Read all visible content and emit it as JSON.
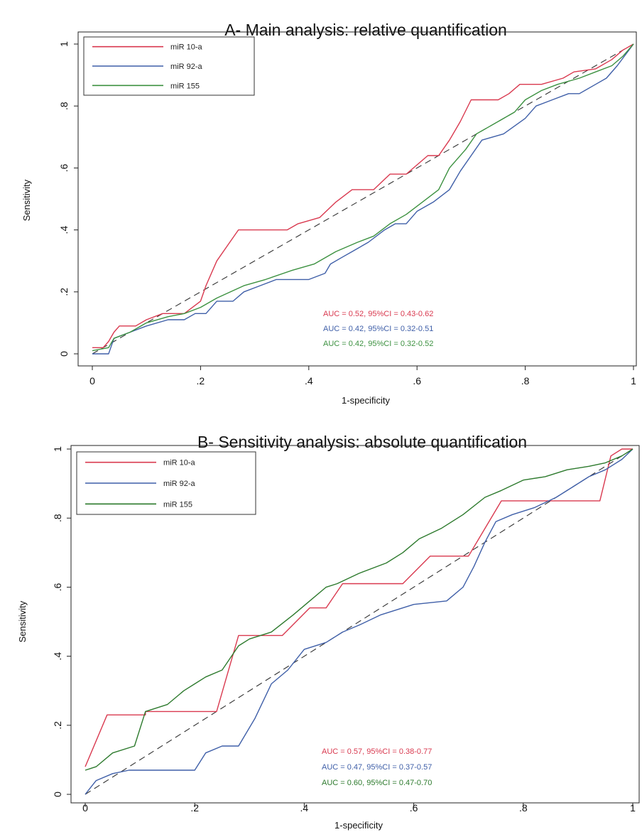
{
  "chart_data": [
    {
      "type": "line",
      "title": "A- Main analysis: relative quantification",
      "xlabel": "1-specificity",
      "ylabel": "Sensitivity",
      "xlim": [
        0,
        1
      ],
      "ylim": [
        0,
        1
      ],
      "xticks": [
        {
          "value": 0,
          "label": "0"
        },
        {
          "value": 0.2,
          "label": ".2"
        },
        {
          "value": 0.4,
          "label": ".4"
        },
        {
          "value": 0.6,
          "label": ".6"
        },
        {
          "value": 0.8,
          "label": ".8"
        },
        {
          "value": 1,
          "label": "1"
        }
      ],
      "yticks": [
        {
          "value": 0,
          "label": "0"
        },
        {
          "value": 0.2,
          "label": ".2"
        },
        {
          "value": 0.4,
          "label": ".4"
        },
        {
          "value": 0.6,
          "label": ".6"
        },
        {
          "value": 0.8,
          "label": ".8"
        },
        {
          "value": 1,
          "label": "1"
        }
      ],
      "grid": false,
      "legend": "top-left",
      "reference_line": "diagonal dashed",
      "series": [
        {
          "name": "miR 10-a",
          "color": "#d9394f",
          "points": [
            [
              0,
              0.02
            ],
            [
              0.02,
              0.02
            ],
            [
              0.03,
              0.04
            ],
            [
              0.04,
              0.07
            ],
            [
              0.05,
              0.09
            ],
            [
              0.08,
              0.09
            ],
            [
              0.1,
              0.11
            ],
            [
              0.13,
              0.13
            ],
            [
              0.17,
              0.13
            ],
            [
              0.2,
              0.17
            ],
            [
              0.21,
              0.22
            ],
            [
              0.23,
              0.3
            ],
            [
              0.25,
              0.35
            ],
            [
              0.27,
              0.4
            ],
            [
              0.31,
              0.4
            ],
            [
              0.36,
              0.4
            ],
            [
              0.38,
              0.42
            ],
            [
              0.42,
              0.44
            ],
            [
              0.45,
              0.49
            ],
            [
              0.48,
              0.53
            ],
            [
              0.52,
              0.53
            ],
            [
              0.55,
              0.58
            ],
            [
              0.58,
              0.58
            ],
            [
              0.62,
              0.64
            ],
            [
              0.64,
              0.64
            ],
            [
              0.66,
              0.69
            ],
            [
              0.68,
              0.75
            ],
            [
              0.7,
              0.82
            ],
            [
              0.75,
              0.82
            ],
            [
              0.77,
              0.84
            ],
            [
              0.79,
              0.87
            ],
            [
              0.83,
              0.87
            ],
            [
              0.87,
              0.89
            ],
            [
              0.89,
              0.91
            ],
            [
              0.93,
              0.92
            ],
            [
              0.96,
              0.95
            ],
            [
              0.98,
              0.98
            ],
            [
              1,
              1
            ]
          ]
        },
        {
          "name": "miR 92-a",
          "color": "#3f5fa8",
          "points": [
            [
              0,
              0
            ],
            [
              0.03,
              0
            ],
            [
              0.04,
              0.05
            ],
            [
              0.07,
              0.07
            ],
            [
              0.1,
              0.09
            ],
            [
              0.14,
              0.11
            ],
            [
              0.17,
              0.11
            ],
            [
              0.19,
              0.13
            ],
            [
              0.21,
              0.13
            ],
            [
              0.23,
              0.17
            ],
            [
              0.26,
              0.17
            ],
            [
              0.28,
              0.2
            ],
            [
              0.31,
              0.22
            ],
            [
              0.34,
              0.24
            ],
            [
              0.4,
              0.24
            ],
            [
              0.43,
              0.26
            ],
            [
              0.44,
              0.29
            ],
            [
              0.46,
              0.31
            ],
            [
              0.48,
              0.33
            ],
            [
              0.51,
              0.36
            ],
            [
              0.54,
              0.4
            ],
            [
              0.56,
              0.42
            ],
            [
              0.58,
              0.42
            ],
            [
              0.6,
              0.46
            ],
            [
              0.63,
              0.49
            ],
            [
              0.66,
              0.53
            ],
            [
              0.68,
              0.59
            ],
            [
              0.7,
              0.64
            ],
            [
              0.72,
              0.69
            ],
            [
              0.76,
              0.71
            ],
            [
              0.8,
              0.76
            ],
            [
              0.82,
              0.8
            ],
            [
              0.85,
              0.82
            ],
            [
              0.88,
              0.84
            ],
            [
              0.9,
              0.84
            ],
            [
              0.93,
              0.87
            ],
            [
              0.95,
              0.89
            ],
            [
              0.97,
              0.93
            ],
            [
              1,
              1
            ]
          ]
        },
        {
          "name": "miR 155",
          "color": "#3c9140",
          "points": [
            [
              0,
              0.01
            ],
            [
              0.03,
              0.02
            ],
            [
              0.04,
              0.05
            ],
            [
              0.07,
              0.07
            ],
            [
              0.1,
              0.1
            ],
            [
              0.14,
              0.12
            ],
            [
              0.17,
              0.13
            ],
            [
              0.2,
              0.15
            ],
            [
              0.23,
              0.18
            ],
            [
              0.28,
              0.22
            ],
            [
              0.32,
              0.24
            ],
            [
              0.37,
              0.27
            ],
            [
              0.41,
              0.29
            ],
            [
              0.45,
              0.33
            ],
            [
              0.49,
              0.36
            ],
            [
              0.52,
              0.38
            ],
            [
              0.55,
              0.42
            ],
            [
              0.58,
              0.45
            ],
            [
              0.61,
              0.49
            ],
            [
              0.64,
              0.53
            ],
            [
              0.66,
              0.6
            ],
            [
              0.69,
              0.66
            ],
            [
              0.71,
              0.71
            ],
            [
              0.73,
              0.73
            ],
            [
              0.75,
              0.75
            ],
            [
              0.78,
              0.78
            ],
            [
              0.8,
              0.82
            ],
            [
              0.83,
              0.85
            ],
            [
              0.86,
              0.87
            ],
            [
              0.9,
              0.89
            ],
            [
              0.93,
              0.91
            ],
            [
              0.96,
              0.93
            ],
            [
              0.98,
              0.96
            ],
            [
              1,
              1
            ]
          ]
        }
      ],
      "annotations": [
        {
          "text": "AUC = 0.52, 95%CI = 0.43-0.62",
          "color": "#d9394f"
        },
        {
          "text": "AUC = 0.42, 95%CI = 0.32-0.51",
          "color": "#3f5fa8"
        },
        {
          "text": "AUC = 0.42, 95%CI = 0.32-0.52",
          "color": "#3c9140"
        }
      ]
    },
    {
      "type": "line",
      "title": "B- Sensitivity analysis: absolute quantification",
      "xlabel": "1-specificity",
      "ylabel": "Sensitivity",
      "xlim": [
        0,
        1
      ],
      "ylim": [
        0,
        1
      ],
      "xticks": [
        {
          "value": 0,
          "label": "0"
        },
        {
          "value": 0.2,
          "label": ".2"
        },
        {
          "value": 0.4,
          "label": ".4"
        },
        {
          "value": 0.6,
          "label": ".6"
        },
        {
          "value": 0.8,
          "label": ".8"
        },
        {
          "value": 1,
          "label": "1"
        }
      ],
      "yticks": [
        {
          "value": 0,
          "label": "0"
        },
        {
          "value": 0.2,
          "label": ".2"
        },
        {
          "value": 0.4,
          "label": ".4"
        },
        {
          "value": 0.6,
          "label": ".6"
        },
        {
          "value": 0.8,
          "label": ".8"
        },
        {
          "value": 1,
          "label": "1"
        }
      ],
      "grid": false,
      "legend": "top-left",
      "reference_line": "diagonal dashed",
      "series": [
        {
          "name": "miR 10-a",
          "color": "#d9394f",
          "points": [
            [
              0,
              0.08
            ],
            [
              0.04,
              0.23
            ],
            [
              0.11,
              0.23
            ],
            [
              0.11,
              0.24
            ],
            [
              0.2,
              0.24
            ],
            [
              0.24,
              0.24
            ],
            [
              0.28,
              0.46
            ],
            [
              0.36,
              0.46
            ],
            [
              0.41,
              0.54
            ],
            [
              0.44,
              0.54
            ],
            [
              0.47,
              0.61
            ],
            [
              0.54,
              0.61
            ],
            [
              0.58,
              0.61
            ],
            [
              0.63,
              0.69
            ],
            [
              0.7,
              0.69
            ],
            [
              0.76,
              0.85
            ],
            [
              0.85,
              0.85
            ],
            [
              0.94,
              0.85
            ],
            [
              0.96,
              0.98
            ],
            [
              0.98,
              1
            ],
            [
              1,
              1
            ]
          ]
        },
        {
          "name": "miR 92-a",
          "color": "#3f5fa8",
          "points": [
            [
              0,
              0
            ],
            [
              0.02,
              0.04
            ],
            [
              0.05,
              0.06
            ],
            [
              0.08,
              0.07
            ],
            [
              0.14,
              0.07
            ],
            [
              0.2,
              0.07
            ],
            [
              0.22,
              0.12
            ],
            [
              0.25,
              0.14
            ],
            [
              0.28,
              0.14
            ],
            [
              0.31,
              0.22
            ],
            [
              0.34,
              0.32
            ],
            [
              0.37,
              0.36
            ],
            [
              0.4,
              0.42
            ],
            [
              0.44,
              0.44
            ],
            [
              0.47,
              0.47
            ],
            [
              0.5,
              0.49
            ],
            [
              0.54,
              0.52
            ],
            [
              0.6,
              0.55
            ],
            [
              0.66,
              0.56
            ],
            [
              0.69,
              0.6
            ],
            [
              0.71,
              0.66
            ],
            [
              0.73,
              0.73
            ],
            [
              0.75,
              0.79
            ],
            [
              0.78,
              0.81
            ],
            [
              0.82,
              0.83
            ],
            [
              0.86,
              0.86
            ],
            [
              0.89,
              0.89
            ],
            [
              0.92,
              0.92
            ],
            [
              0.95,
              0.94
            ],
            [
              0.98,
              0.97
            ],
            [
              1,
              1
            ]
          ]
        },
        {
          "name": "miR 155",
          "color": "#2d7a2d",
          "points": [
            [
              0,
              0.07
            ],
            [
              0.02,
              0.08
            ],
            [
              0.05,
              0.12
            ],
            [
              0.09,
              0.14
            ],
            [
              0.11,
              0.24
            ],
            [
              0.15,
              0.26
            ],
            [
              0.18,
              0.3
            ],
            [
              0.2,
              0.32
            ],
            [
              0.22,
              0.34
            ],
            [
              0.25,
              0.36
            ],
            [
              0.28,
              0.43
            ],
            [
              0.3,
              0.45
            ],
            [
              0.34,
              0.47
            ],
            [
              0.38,
              0.52
            ],
            [
              0.41,
              0.56
            ],
            [
              0.44,
              0.6
            ],
            [
              0.46,
              0.61
            ],
            [
              0.5,
              0.64
            ],
            [
              0.55,
              0.67
            ],
            [
              0.58,
              0.7
            ],
            [
              0.61,
              0.74
            ],
            [
              0.65,
              0.77
            ],
            [
              0.69,
              0.81
            ],
            [
              0.73,
              0.86
            ],
            [
              0.76,
              0.88
            ],
            [
              0.8,
              0.91
            ],
            [
              0.84,
              0.92
            ],
            [
              0.88,
              0.94
            ],
            [
              0.92,
              0.95
            ],
            [
              0.95,
              0.96
            ],
            [
              0.98,
              0.98
            ],
            [
              1,
              1
            ]
          ]
        }
      ],
      "annotations": [
        {
          "text": "AUC = 0.57, 95%CI = 0.38-0.77",
          "color": "#d9394f"
        },
        {
          "text": "AUC = 0.47, 95%CI = 0.37-0.57",
          "color": "#3f5fa8"
        },
        {
          "text": "AUC = 0.60, 95%CI = 0.47-0.70",
          "color": "#2d7a2d"
        }
      ]
    }
  ]
}
